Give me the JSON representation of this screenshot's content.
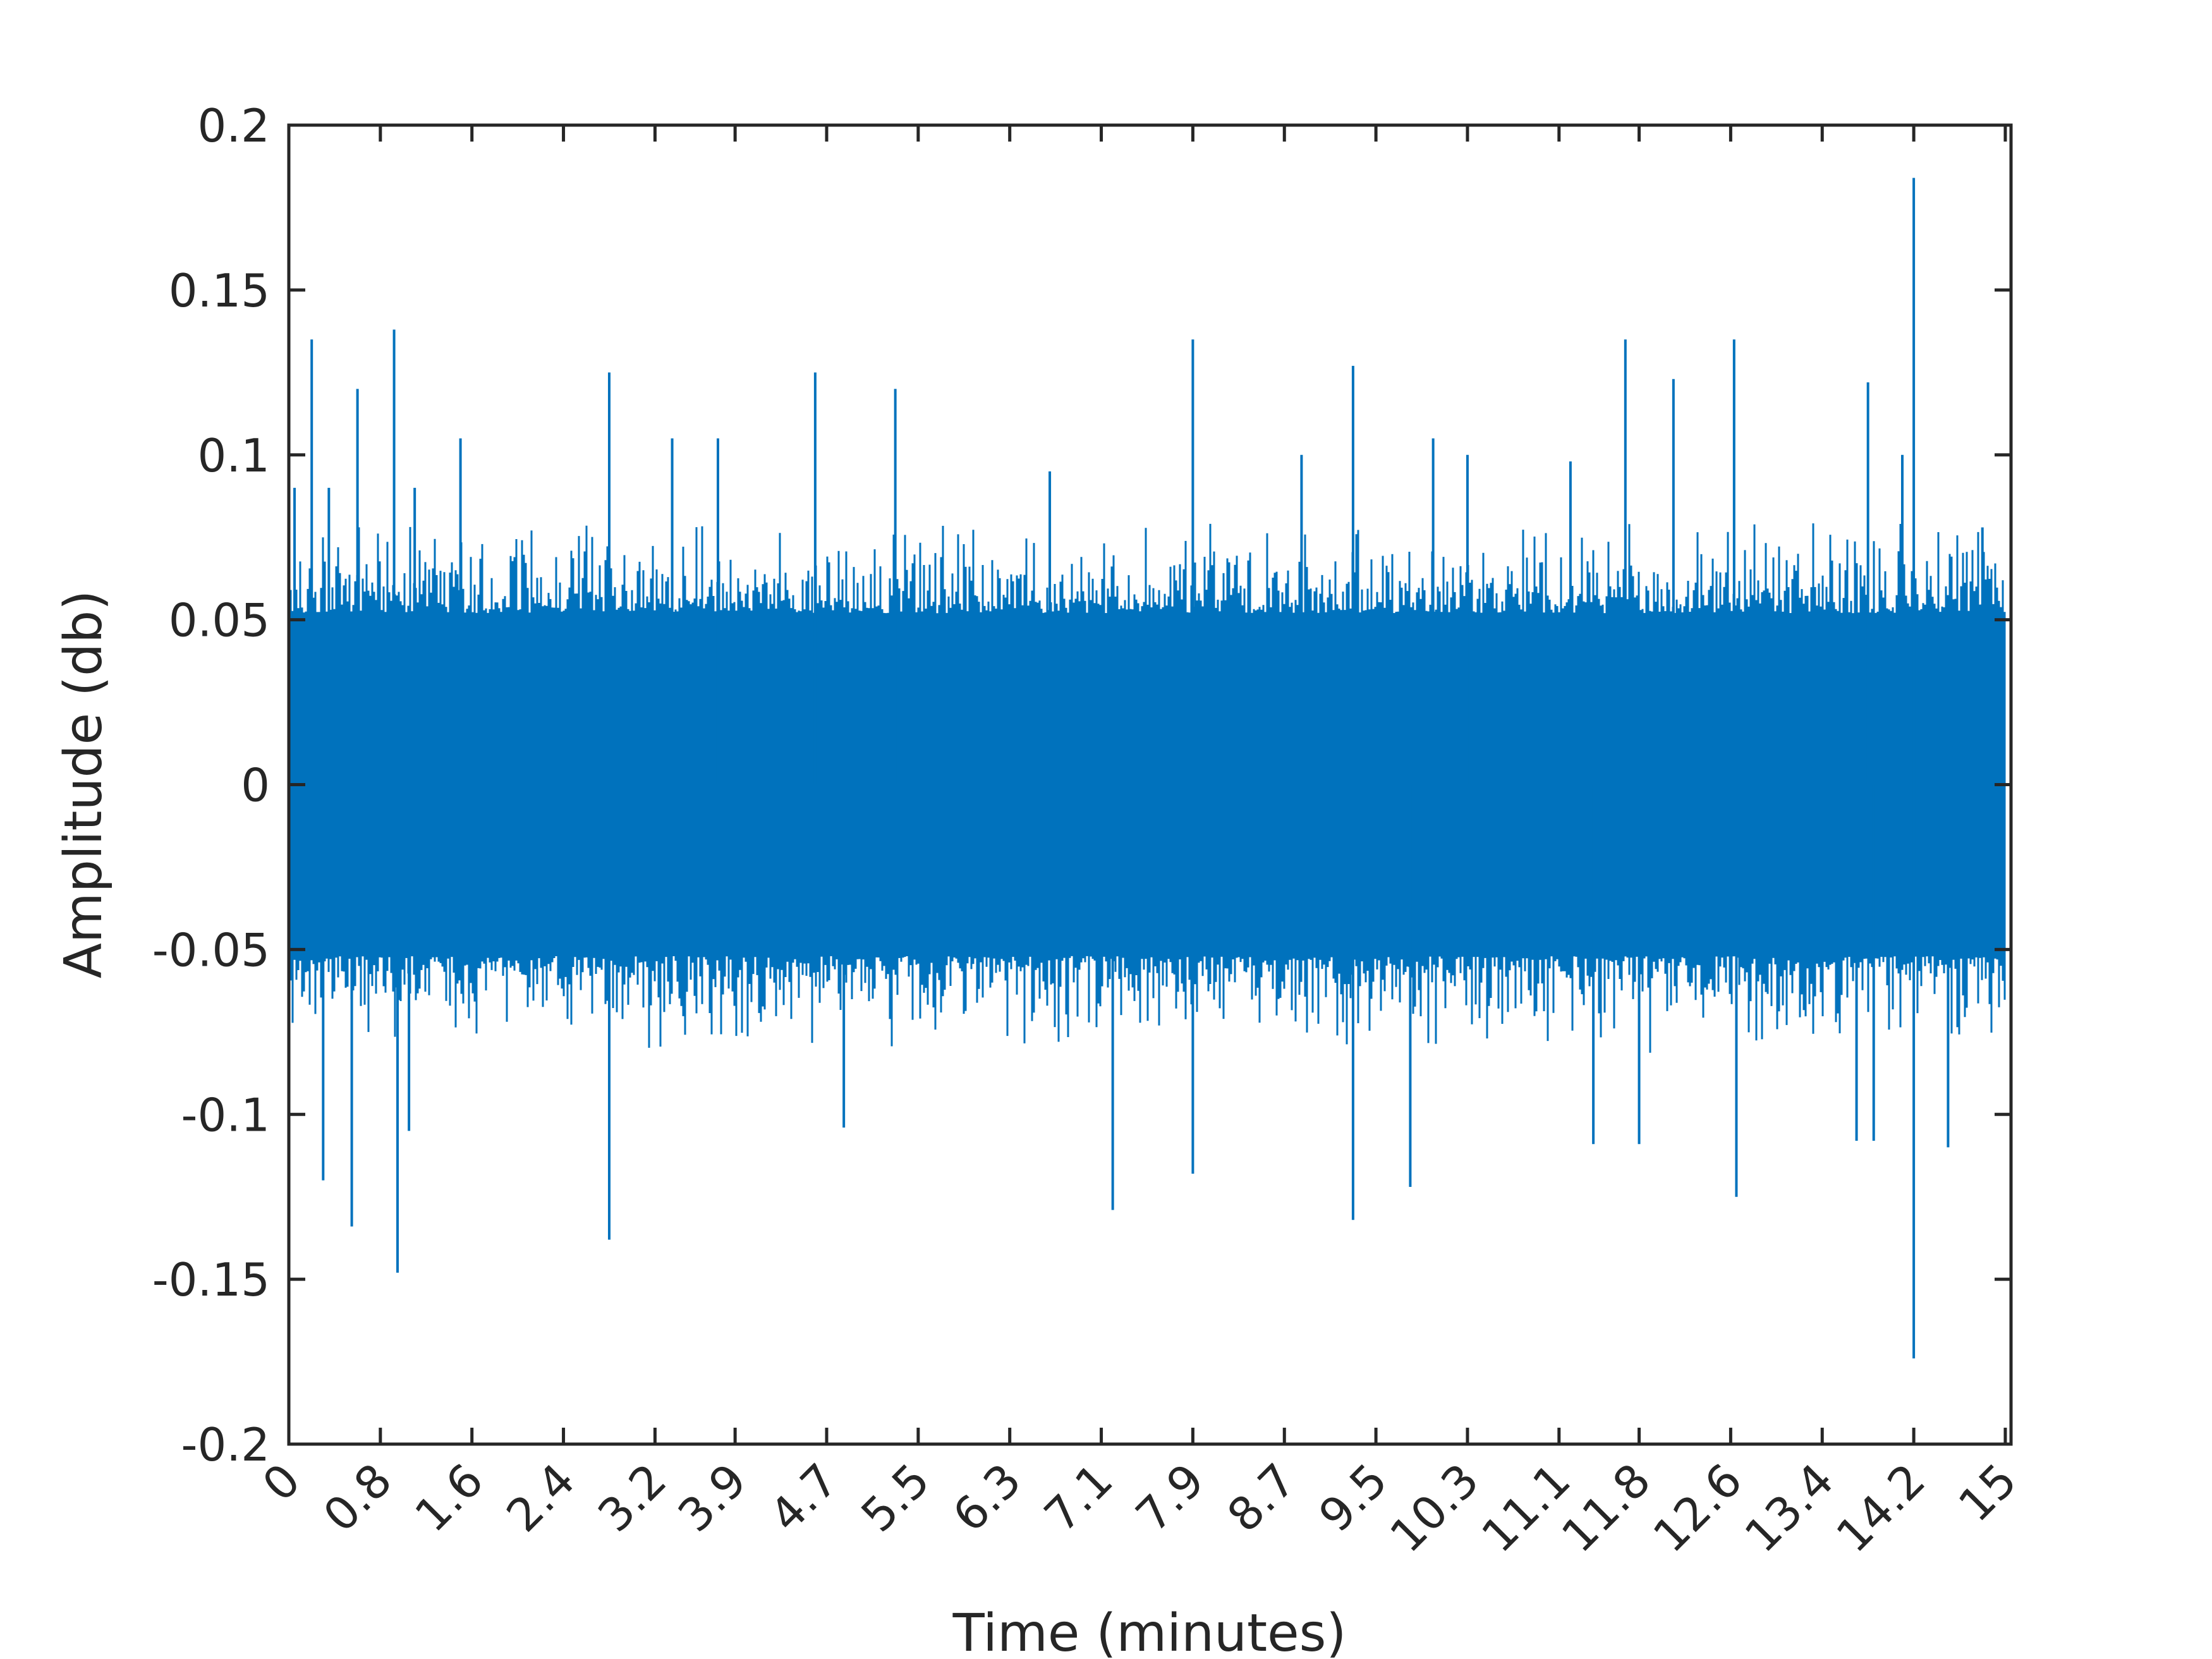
{
  "chart_data": {
    "type": "line",
    "title": "",
    "xlabel": "Time (minutes)",
    "ylabel": "Amplitude (db)",
    "xlim": [
      0,
      15.05
    ],
    "ylim": [
      -0.2,
      0.2
    ],
    "grid": false,
    "legend": "none",
    "xticks": [
      0,
      0.8,
      1.6,
      2.4,
      3.2,
      3.9,
      4.7,
      5.5,
      6.3,
      7.1,
      7.9,
      8.7,
      9.5,
      10.3,
      11.1,
      11.8,
      12.6,
      13.4,
      14.2,
      15
    ],
    "xtick_labels": [
      "0",
      "0.8",
      "1.6",
      "2.4",
      "3.2",
      "3.9",
      "4.7",
      "5.5",
      "6.3",
      "7.1",
      "7.9",
      "8.7",
      "9.5",
      "10.3",
      "11.1",
      "11.8",
      "12.6",
      "13.4",
      "14.2",
      "15"
    ],
    "yticks": [
      0.2,
      0.15,
      0.1,
      0.05,
      0,
      -0.05,
      -0.1,
      -0.15,
      -0.2
    ],
    "ytick_labels": [
      "0.2",
      "0.15",
      "0.1",
      "0.05",
      "0",
      "-0.05",
      "-0.1",
      "-0.15",
      "-0.2"
    ],
    "series": [
      {
        "color": "#0072BD",
        "band": [
          -0.048,
          0.048
        ],
        "positive_peaks": [
          {
            "x": 0.05,
            "y": 0.09
          },
          {
            "x": 0.2,
            "y": 0.135
          },
          {
            "x": 0.35,
            "y": 0.09
          },
          {
            "x": 0.6,
            "y": 0.12
          },
          {
            "x": 0.92,
            "y": 0.138
          },
          {
            "x": 1.1,
            "y": 0.09
          },
          {
            "x": 1.5,
            "y": 0.105
          },
          {
            "x": 2.8,
            "y": 0.125
          },
          {
            "x": 3.35,
            "y": 0.105
          },
          {
            "x": 3.75,
            "y": 0.105
          },
          {
            "x": 4.6,
            "y": 0.125
          },
          {
            "x": 5.3,
            "y": 0.12
          },
          {
            "x": 6.65,
            "y": 0.095
          },
          {
            "x": 7.9,
            "y": 0.135
          },
          {
            "x": 8.85,
            "y": 0.1
          },
          {
            "x": 9.3,
            "y": 0.127
          },
          {
            "x": 10.0,
            "y": 0.105
          },
          {
            "x": 10.3,
            "y": 0.1
          },
          {
            "x": 11.2,
            "y": 0.098
          },
          {
            "x": 11.68,
            "y": 0.135
          },
          {
            "x": 12.1,
            "y": 0.123
          },
          {
            "x": 12.63,
            "y": 0.135
          },
          {
            "x": 13.8,
            "y": 0.122
          },
          {
            "x": 14.1,
            "y": 0.1
          },
          {
            "x": 14.2,
            "y": 0.184
          },
          {
            "x": 14.8,
            "y": 0.078
          }
        ],
        "negative_peaks": [
          {
            "x": 0.3,
            "y": -0.12
          },
          {
            "x": 0.55,
            "y": -0.134
          },
          {
            "x": 0.95,
            "y": -0.148
          },
          {
            "x": 1.05,
            "y": -0.105
          },
          {
            "x": 2.8,
            "y": -0.138
          },
          {
            "x": 4.85,
            "y": -0.104
          },
          {
            "x": 7.2,
            "y": -0.129
          },
          {
            "x": 7.9,
            "y": -0.118
          },
          {
            "x": 9.3,
            "y": -0.132
          },
          {
            "x": 9.8,
            "y": -0.122
          },
          {
            "x": 11.4,
            "y": -0.109
          },
          {
            "x": 11.8,
            "y": -0.109
          },
          {
            "x": 12.65,
            "y": -0.125
          },
          {
            "x": 13.7,
            "y": -0.108
          },
          {
            "x": 13.85,
            "y": -0.108
          },
          {
            "x": 14.2,
            "y": -0.174
          },
          {
            "x": 14.5,
            "y": -0.11
          }
        ]
      }
    ]
  }
}
